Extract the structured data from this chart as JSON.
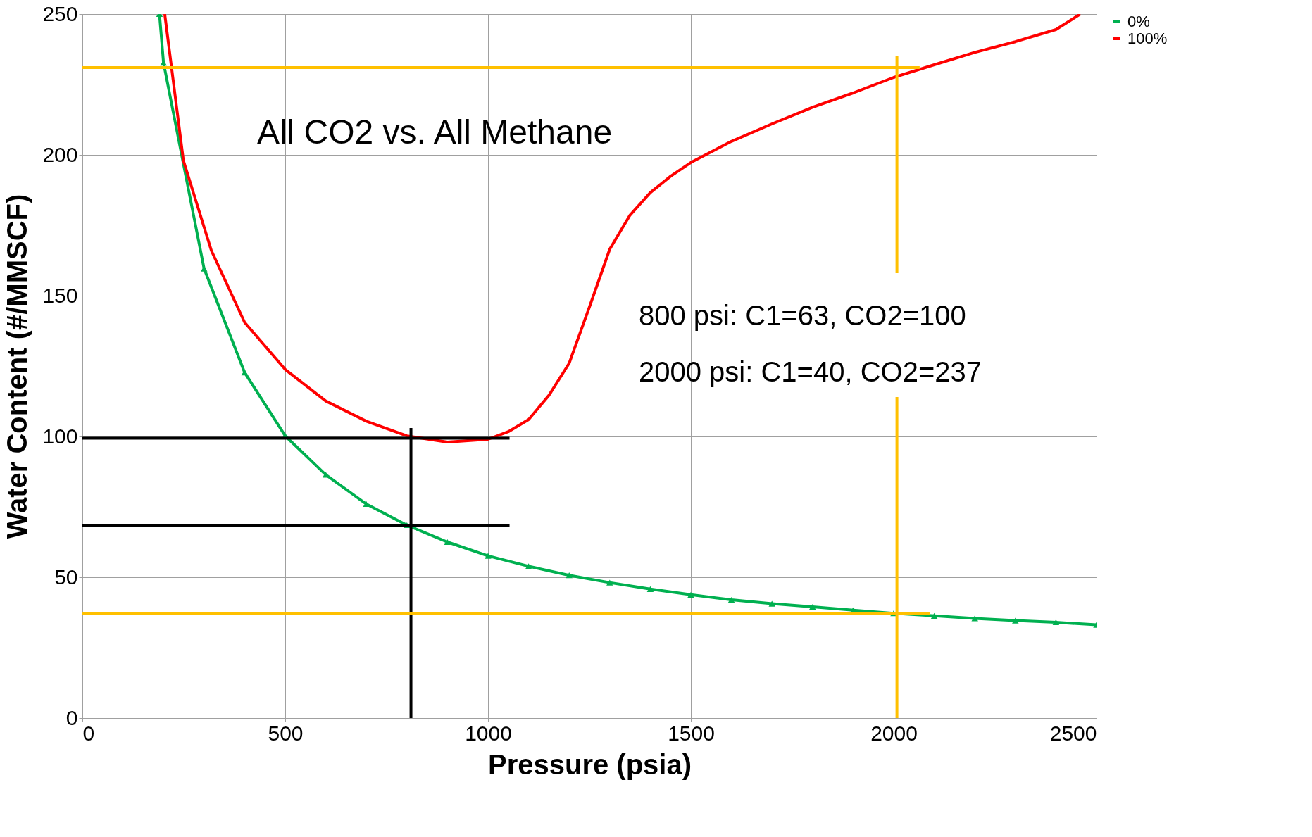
{
  "chart_data": {
    "type": "line",
    "xlabel": "Pressure (psia)",
    "ylabel": "Water Content (#/MMSCF)",
    "xlim": [
      0,
      2500
    ],
    "ylim": [
      0,
      250
    ],
    "xticks": [
      0,
      500,
      1000,
      1500,
      2000,
      2500
    ],
    "yticks": [
      0,
      50,
      100,
      150,
      200,
      250
    ],
    "grid": true,
    "legend": "right",
    "line_style": "solid",
    "annotations": [
      "All CO2 vs. All Methane",
      "800 psi: C1=63, CO2=100",
      "2000 psi: C1=40, CO2=237"
    ],
    "series": [
      {
        "name": "0%",
        "color": "#00b050",
        "marker": "triangle",
        "x": [
          190,
          200,
          300,
          400,
          500,
          600,
          700,
          800,
          900,
          1000,
          1100,
          1200,
          1300,
          1400,
          1500,
          1600,
          1700,
          1800,
          1900,
          2000,
          2100,
          2200,
          2300,
          2400,
          2500
        ],
        "values": [
          250,
          232.7,
          159.6,
          122.7,
          100.2,
          86.4,
          76,
          68.5,
          62.5,
          57.6,
          53.9,
          50.7,
          48.1,
          45.8,
          43.8,
          42,
          40.6,
          39.5,
          38.3,
          37.2,
          36.3,
          35.4,
          34.6,
          34,
          33.1
        ]
      },
      {
        "name": "100%",
        "color": "#ff0000",
        "marker": "none",
        "x": [
          203,
          249,
          318,
          400,
          500,
          600,
          700,
          800,
          900,
          1000,
          1050,
          1100,
          1150,
          1200,
          1250,
          1300,
          1350,
          1400,
          1450,
          1500,
          1600,
          1700,
          1800,
          1900,
          2000,
          2100,
          2200,
          2300,
          2400,
          2460
        ],
        "values": [
          250,
          198,
          166,
          140.5,
          123.8,
          112.6,
          105.4,
          100.2,
          98,
          99,
          101.7,
          106,
          114.6,
          126,
          146,
          166.5,
          178.6,
          186.6,
          192.4,
          197.3,
          204.8,
          211,
          216.9,
          222,
          227.5,
          232,
          236.4,
          240.2,
          244.5,
          250
        ]
      },
      {
        "color": "#000000",
        "marker": "none",
        "x": [
          0,
          1053
        ],
        "values": [
          99.4,
          99.4
        ]
      },
      {
        "color": "#000000",
        "marker": "none",
        "x": [
          0,
          1053
        ],
        "values": [
          68.3,
          68.3
        ]
      },
      {
        "color": "#000000",
        "marker": "none",
        "x": [
          810,
          810
        ],
        "values": [
          0,
          103
        ]
      },
      {
        "color": "#ffc000",
        "marker": "none",
        "x": [
          0,
          2064
        ],
        "values": [
          231,
          231
        ]
      },
      {
        "color": "#ffc000",
        "marker": "none",
        "x": [
          0,
          2090
        ],
        "values": [
          37.2,
          37.2
        ]
      },
      {
        "color": "#ffc000",
        "marker": "none",
        "x": [
          2008,
          2008
        ],
        "values": [
          0,
          114
        ]
      },
      {
        "color": "#ffc000",
        "marker": "none",
        "x": [
          2008,
          2008
        ],
        "values": [
          158,
          235
        ]
      }
    ]
  }
}
